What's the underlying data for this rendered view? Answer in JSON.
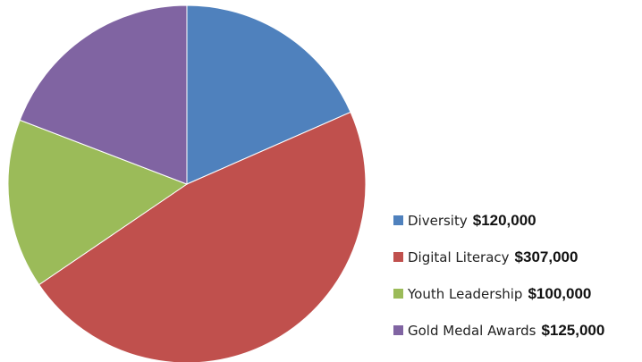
{
  "chart_data": {
    "type": "pie",
    "title": "",
    "start_angle_deg": 0,
    "direction": "clockwise",
    "legend_position": "right",
    "slices": [
      {
        "label": "Diversity",
        "amount": "$120,000",
        "value": 120000,
        "color": "#4F81BD"
      },
      {
        "label": "Digital Literacy",
        "amount": "$307,000",
        "value": 307000,
        "color": "#C0504D"
      },
      {
        "label": "Youth Leadership",
        "amount": "$100,000",
        "value": 100000,
        "color": "#9BBB59"
      },
      {
        "label": "Gold Medal Awards",
        "amount": "$125,000",
        "value": 125000,
        "color": "#8064A2"
      }
    ]
  }
}
